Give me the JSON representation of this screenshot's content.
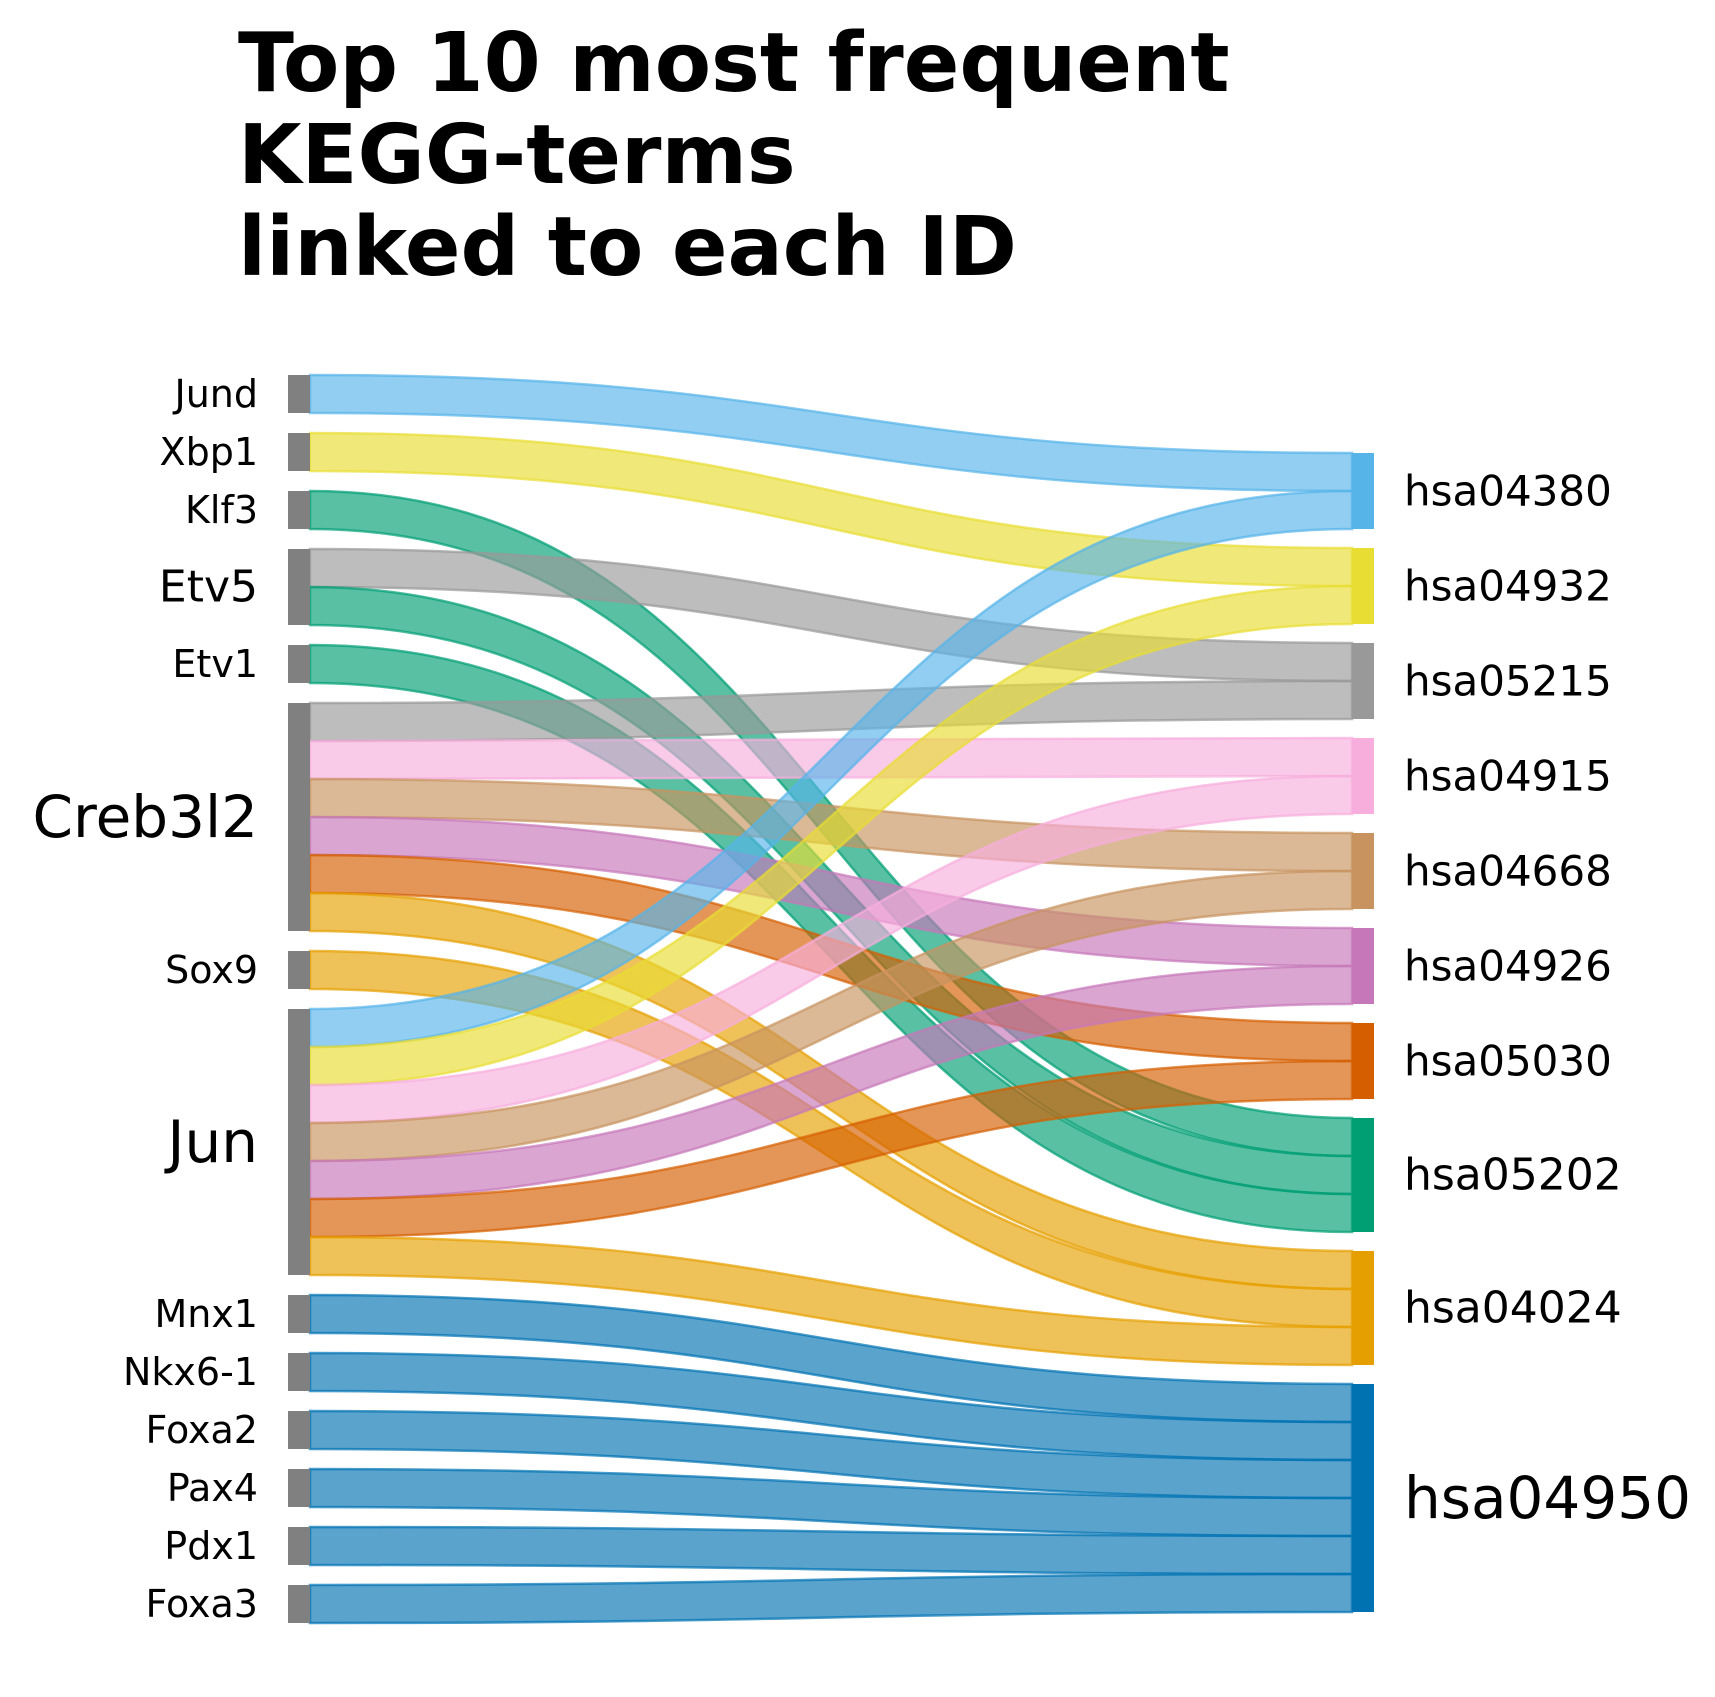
{
  "chart_data": {
    "type": "sankey",
    "title": [
      "Top 10 most frequent",
      "KEGG-terms",
      "linked to each ID"
    ],
    "sources": [
      {
        "name": "Jund",
        "count": 1
      },
      {
        "name": "Xbp1",
        "count": 1
      },
      {
        "name": "Klf3",
        "count": 1
      },
      {
        "name": "Etv5",
        "count": 2
      },
      {
        "name": "Etv1",
        "count": 1
      },
      {
        "name": "Creb3l2",
        "count": 6
      },
      {
        "name": "Sox9",
        "count": 1
      },
      {
        "name": "Jun",
        "count": 7
      },
      {
        "name": "Mnx1",
        "count": 1
      },
      {
        "name": "Nkx6-1",
        "count": 1
      },
      {
        "name": "Foxa2",
        "count": 1
      },
      {
        "name": "Pax4",
        "count": 1
      },
      {
        "name": "Pdx1",
        "count": 1
      },
      {
        "name": "Foxa3",
        "count": 1
      }
    ],
    "targets": [
      {
        "name": "hsa04380",
        "count": 2,
        "color": "#56B4E9"
      },
      {
        "name": "hsa04932",
        "count": 2,
        "color": "#E8DD33"
      },
      {
        "name": "hsa05215",
        "count": 2,
        "color": "#999999"
      },
      {
        "name": "hsa04915",
        "count": 2,
        "color": "#F7AEDD"
      },
      {
        "name": "hsa04668",
        "count": 2,
        "color": "#C8935F"
      },
      {
        "name": "hsa04926",
        "count": 2,
        "color": "#C677B9"
      },
      {
        "name": "hsa05030",
        "count": 2,
        "color": "#D55E00"
      },
      {
        "name": "hsa05202",
        "count": 3,
        "color": "#009E73"
      },
      {
        "name": "hsa04024",
        "count": 3,
        "color": "#E69F00"
      },
      {
        "name": "hsa04950",
        "count": 6,
        "color": "#0072B2"
      }
    ],
    "links": [
      {
        "source": "Jund",
        "target": "hsa04380"
      },
      {
        "source": "Xbp1",
        "target": "hsa04932"
      },
      {
        "source": "Klf3",
        "target": "hsa05202"
      },
      {
        "source": "Etv5",
        "target": "hsa05215"
      },
      {
        "source": "Etv5",
        "target": "hsa05202"
      },
      {
        "source": "Etv1",
        "target": "hsa05202"
      },
      {
        "source": "Creb3l2",
        "target": "hsa05215"
      },
      {
        "source": "Creb3l2",
        "target": "hsa04915"
      },
      {
        "source": "Creb3l2",
        "target": "hsa04668"
      },
      {
        "source": "Creb3l2",
        "target": "hsa04926"
      },
      {
        "source": "Creb3l2",
        "target": "hsa05030"
      },
      {
        "source": "Creb3l2",
        "target": "hsa04024"
      },
      {
        "source": "Sox9",
        "target": "hsa04024"
      },
      {
        "source": "Jun",
        "target": "hsa04380"
      },
      {
        "source": "Jun",
        "target": "hsa04932"
      },
      {
        "source": "Jun",
        "target": "hsa04915"
      },
      {
        "source": "Jun",
        "target": "hsa04668"
      },
      {
        "source": "Jun",
        "target": "hsa04926"
      },
      {
        "source": "Jun",
        "target": "hsa05030"
      },
      {
        "source": "Jun",
        "target": "hsa04024"
      },
      {
        "source": "Mnx1",
        "target": "hsa04950"
      },
      {
        "source": "Nkx6-1",
        "target": "hsa04950"
      },
      {
        "source": "Foxa2",
        "target": "hsa04950"
      },
      {
        "source": "Pax4",
        "target": "hsa04950"
      },
      {
        "source": "Pdx1",
        "target": "hsa04950"
      },
      {
        "source": "Foxa3",
        "target": "hsa04950"
      }
    ],
    "source_node_color": "#808080"
  }
}
